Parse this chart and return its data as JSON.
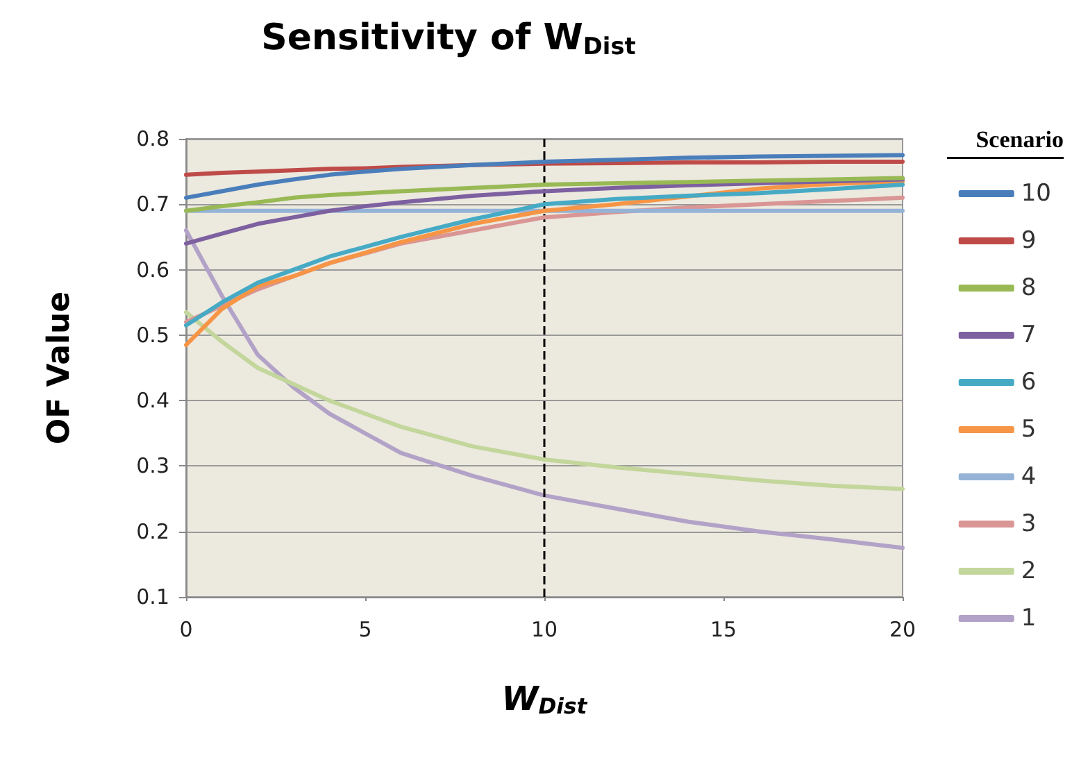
{
  "chart_data": {
    "type": "line",
    "title": "Sensitivity of W$_{Dist}$",
    "xlabel": "W$_{Dist}$",
    "ylabel": "OF Value",
    "legend_title": "Scenario",
    "x": [
      0,
      1,
      2,
      3,
      4,
      5,
      6,
      8,
      10,
      12,
      14,
      16,
      18,
      20
    ],
    "series": [
      {
        "name": "10",
        "color": "#4a7ebb",
        "values": [
          0.71,
          0.72,
          0.73,
          0.738,
          0.745,
          0.75,
          0.754,
          0.76,
          0.765,
          0.768,
          0.771,
          0.773,
          0.774,
          0.775
        ]
      },
      {
        "name": "9",
        "color": "#be4b48",
        "values": [
          0.745,
          0.748,
          0.75,
          0.752,
          0.754,
          0.755,
          0.757,
          0.76,
          0.762,
          0.763,
          0.764,
          0.764,
          0.765,
          0.765
        ]
      },
      {
        "name": "8",
        "color": "#98b954",
        "values": [
          0.69,
          0.697,
          0.703,
          0.71,
          0.714,
          0.717,
          0.72,
          0.725,
          0.73,
          0.732,
          0.734,
          0.736,
          0.738,
          0.74
        ]
      },
      {
        "name": "7",
        "color": "#7d60a0",
        "values": [
          0.64,
          0.655,
          0.67,
          0.68,
          0.69,
          0.697,
          0.703,
          0.713,
          0.72,
          0.725,
          0.729,
          0.732,
          0.735,
          0.738
        ]
      },
      {
        "name": "6",
        "color": "#46aac5",
        "values": [
          0.515,
          0.55,
          0.58,
          0.6,
          0.62,
          0.635,
          0.65,
          0.677,
          0.7,
          0.708,
          0.713,
          0.717,
          0.723,
          0.73
        ]
      },
      {
        "name": "5",
        "color": "#f69546",
        "values": [
          0.485,
          0.54,
          0.575,
          0.59,
          0.61,
          0.626,
          0.642,
          0.67,
          0.69,
          0.7,
          0.712,
          0.724,
          0.731,
          0.735
        ]
      },
      {
        "name": "4",
        "color": "#95b3d7",
        "values": [
          0.69,
          0.69,
          0.69,
          0.69,
          0.69,
          0.69,
          0.69,
          0.69,
          0.69,
          0.69,
          0.69,
          0.69,
          0.69,
          0.69
        ]
      },
      {
        "name": "3",
        "color": "#d99694",
        "values": [
          0.52,
          0.545,
          0.57,
          0.59,
          0.61,
          0.625,
          0.64,
          0.66,
          0.68,
          0.688,
          0.695,
          0.7,
          0.705,
          0.71
        ]
      },
      {
        "name": "2",
        "color": "#c3d69b",
        "values": [
          0.535,
          0.49,
          0.45,
          0.425,
          0.4,
          0.38,
          0.36,
          0.33,
          0.31,
          0.298,
          0.288,
          0.278,
          0.27,
          0.265
        ]
      },
      {
        "name": "1",
        "color": "#b3a2c7",
        "values": [
          0.66,
          0.56,
          0.47,
          0.42,
          0.38,
          0.35,
          0.32,
          0.285,
          0.255,
          0.235,
          0.215,
          0.2,
          0.188,
          0.175
        ]
      }
    ],
    "xlim": [
      0,
      20
    ],
    "xticks": [
      0,
      5,
      10,
      15,
      20
    ],
    "ylim": [
      0.1,
      0.8
    ],
    "yticks": [
      0.1,
      0.2,
      0.3,
      0.4,
      0.5,
      0.6,
      0.7,
      0.8
    ],
    "ref_lines": [
      {
        "axis": "x",
        "value": 10,
        "color": "#000000",
        "line_style": "dashed"
      }
    ],
    "grid": "y",
    "legend": "right",
    "marker": "none",
    "line_style": "solid"
  }
}
